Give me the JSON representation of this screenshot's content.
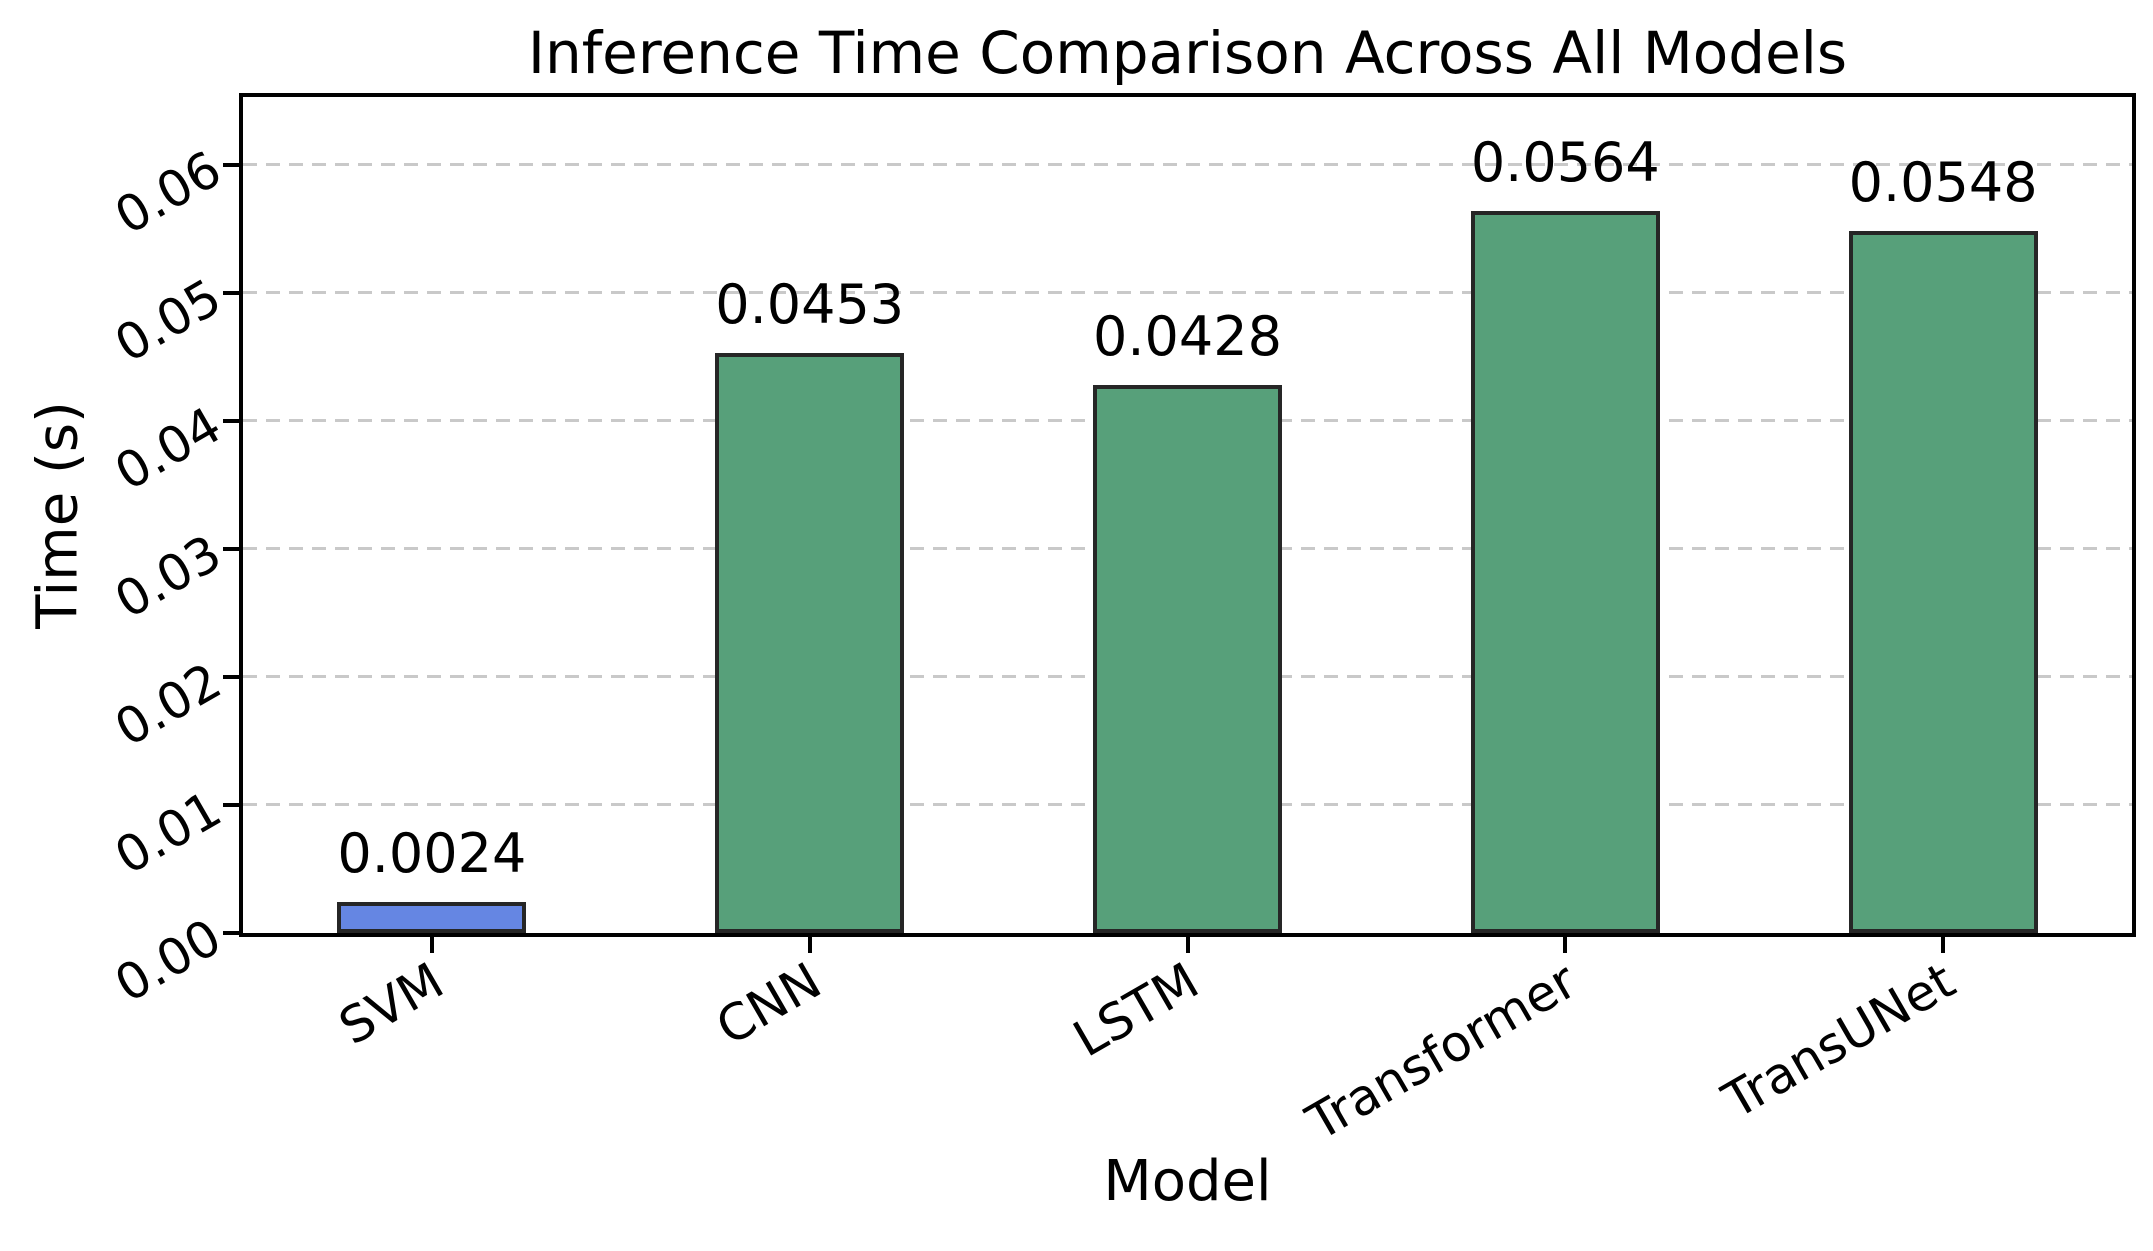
{
  "figure": {
    "title": "Inference Time Comparison Across All Models",
    "xlabel": "Model",
    "ylabel": "Time (s)"
  },
  "chart_data": {
    "type": "bar",
    "title": "Inference Time Comparison Across All Models",
    "xlabel": "Model",
    "ylabel": "Time (s)",
    "categories": [
      "SVM",
      "CNN",
      "LSTM",
      "Transformer",
      "TransUNet"
    ],
    "values": [
      0.0024,
      0.0453,
      0.0428,
      0.0564,
      0.0548
    ],
    "value_labels": [
      "0.0024",
      "0.0453",
      "0.0428",
      "0.0564",
      "0.0548"
    ],
    "bar_colors": [
      "#6586e3",
      "#57a07a",
      "#57a07a",
      "#57a07a",
      "#57a07a"
    ],
    "edge_color": "#262626",
    "yticks": [
      0.0,
      0.01,
      0.02,
      0.03,
      0.04,
      0.05,
      0.06
    ],
    "ytick_labels": [
      "0.00",
      "0.01",
      "0.02",
      "0.03",
      "0.04",
      "0.05",
      "0.06"
    ],
    "ylim": [
      0,
      0.0653
    ],
    "bar_width_fraction": 0.5,
    "grid": true,
    "grid_axis": "y",
    "grid_style": "dashed",
    "grid_color": "#c9c9c9",
    "tick_label_rotation_deg": 30,
    "legend": null,
    "background": "#ffffff"
  }
}
